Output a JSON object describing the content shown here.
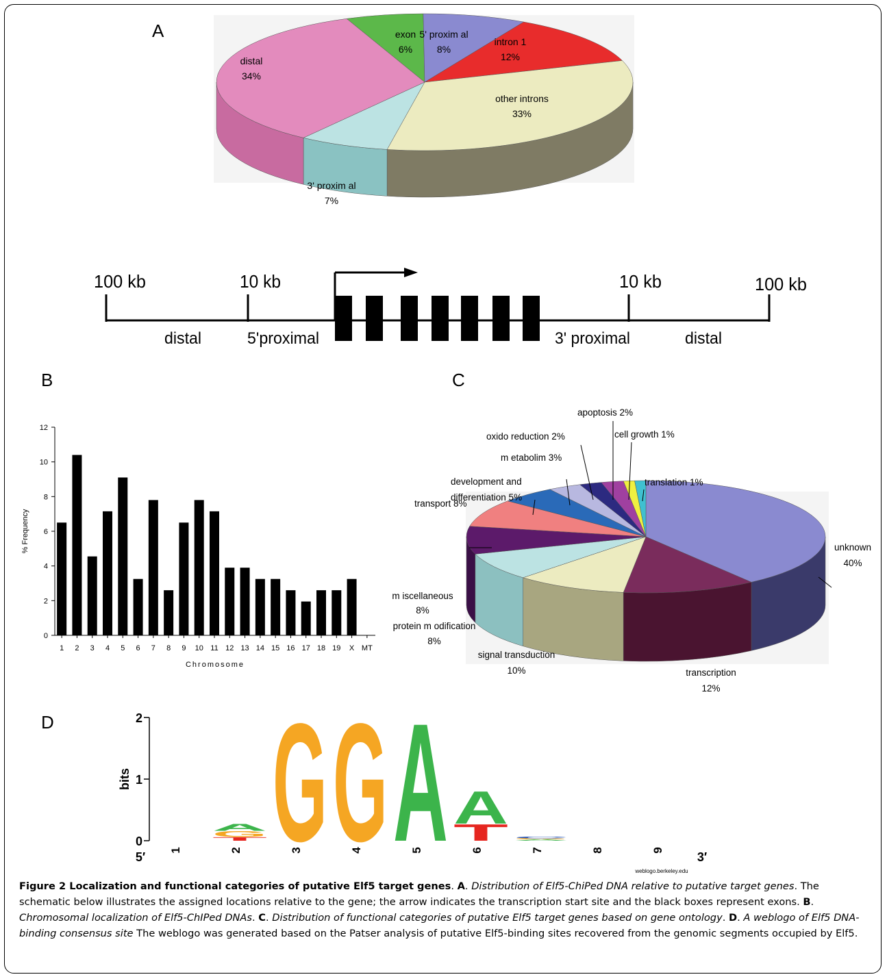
{
  "panels": {
    "a": "A",
    "b": "B",
    "c": "C",
    "d": "D"
  },
  "chart_data": [
    {
      "type": "pie",
      "panel": "A",
      "labels": [
        "exon",
        "5' proxim al",
        "intron 1",
        "other introns",
        "3' proxim al",
        "distal"
      ],
      "values": [
        6,
        8,
        12,
        33,
        7,
        34
      ],
      "value_labels": [
        "6%",
        "8%",
        "12%",
        "33%",
        "7%",
        "34%"
      ],
      "colors": [
        "#5cb84a",
        "#8a8ad0",
        "#e82c2c",
        "#ecebc0",
        "#bce3e3",
        "#e38bbd"
      ],
      "side_colors": [
        "#3f8a32",
        "#5e5ea2",
        "#9e1e1e",
        "#7f7b64",
        "#8ac2c2",
        "#c86ba0"
      ]
    },
    {
      "type": "bar",
      "panel": "B",
      "categories": [
        "1",
        "2",
        "3",
        "4",
        "5",
        "6",
        "7",
        "8",
        "9",
        "10",
        "11",
        "12",
        "13",
        "14",
        "15",
        "16",
        "17",
        "18",
        "19",
        "X",
        "MT"
      ],
      "values": [
        6.5,
        10.4,
        4.55,
        7.15,
        9.1,
        3.25,
        7.8,
        2.6,
        6.5,
        7.8,
        7.15,
        3.9,
        3.9,
        3.25,
        3.25,
        2.6,
        1.95,
        2.6,
        2.6,
        3.25,
        0
      ],
      "xlabel": "Chromosome",
      "ylabel": "% Frequency",
      "ylim": [
        0,
        12
      ],
      "yticks": [
        "0",
        "2",
        "4",
        "6",
        "8",
        "10",
        "12"
      ],
      "bar_color": "#000000"
    },
    {
      "type": "pie",
      "panel": "C",
      "labels": [
        "unknown",
        "transcription",
        "signal transduction",
        "protein modification",
        "miscellaneous",
        "transport",
        "development and differentiation",
        "metabolim",
        "oxido reduction",
        "apoptosis",
        "cell growth",
        "translation"
      ],
      "values": [
        40,
        12,
        10,
        8,
        8,
        8,
        5,
        3,
        2,
        2,
        1,
        1
      ],
      "value_labels": [
        "40%",
        "12%",
        "10%",
        "8%",
        "8%",
        "8%",
        "5%",
        "3%",
        "2%",
        "2%",
        "1%",
        "1%"
      ],
      "label_texts": [
        "unknown",
        "transcription",
        "signal transduction",
        "protein m odification",
        "m iscellaneous",
        "transport 8%",
        "development and",
        "m etabolim 3%",
        "oxido reduction 2%",
        "apoptosis 2%",
        "cell growth 1%",
        "translation 1%"
      ],
      "label_texts_2": [
        "40%",
        "12%",
        "10%",
        "8%",
        "8%",
        "",
        "differentiation 5%",
        "",
        "",
        "",
        "",
        ""
      ],
      "colors": [
        "#8a8ad0",
        "#7a2c5c",
        "#ecebc0",
        "#bce3e3",
        "#5c1a6a",
        "#f08080",
        "#2a6ab8",
        "#b8b8e0",
        "#2c2a80",
        "#a040a0",
        "#f0f040",
        "#40c0d0"
      ],
      "side_colors": [
        "#3a3a6a",
        "#4a1430",
        "#a8a680",
        "#8cc0c0",
        "#3a0f46",
        "#c05a5a",
        "#1a4a88",
        "#8888b0",
        "#1a1858",
        "#702a70",
        "#b0b020",
        "#2a8a96"
      ]
    },
    {
      "type": "sequence-logo",
      "panel": "D",
      "ylabel": "bits",
      "yticks": [
        "0",
        "1",
        "2"
      ],
      "positions": [
        "1",
        "2",
        "3",
        "4",
        "5",
        "6",
        "7",
        "8",
        "9"
      ],
      "end_left": "5′",
      "end_right": "3′",
      "letters": [
        {
          "pos": 2,
          "letter": "A",
          "bits": 0.12,
          "color": "#3cb44b"
        },
        {
          "pos": 2,
          "letter": "T",
          "bits": 0.06,
          "color": "#e6261f"
        },
        {
          "pos": 2,
          "letter": "G",
          "bits": 0.1,
          "color": "#f5a623"
        },
        {
          "pos": 3,
          "letter": "G",
          "bits": 2.0,
          "color": "#f5a623"
        },
        {
          "pos": 4,
          "letter": "G",
          "bits": 2.0,
          "color": "#f5a623"
        },
        {
          "pos": 5,
          "letter": "A",
          "bits": 2.0,
          "color": "#3cb44b"
        },
        {
          "pos": 6,
          "letter": "A",
          "bits": 0.55,
          "color": "#3cb44b"
        },
        {
          "pos": 6,
          "letter": "T",
          "bits": 0.28,
          "color": "#e6261f"
        },
        {
          "pos": 7,
          "letter": "C",
          "bits": 0.03,
          "color": "#1f4fb4"
        },
        {
          "pos": 7,
          "letter": "A",
          "bits": 0.02,
          "color": "#3cb44b"
        },
        {
          "pos": 7,
          "letter": "G",
          "bits": 0.02,
          "color": "#f5a623"
        }
      ],
      "credit": "weblogo.berkeley.edu"
    }
  ],
  "schematic": {
    "left_outer": "100 kb",
    "left_inner": "10 kb",
    "right_inner": "10 kb",
    "right_outer": "100 kb",
    "left_distal": "distal",
    "left_proximal": "5'proximal",
    "right_proximal": "3' proximal",
    "right_distal": "distal",
    "exon_count": 7
  },
  "caption": {
    "figure_label": "Figure 2 Localization and functional categories of putative Elf5 target genes",
    "a_letter": "A",
    "a_italic": "Distribution of Elf5-ChiPed DNA relative to putative target genes",
    "a_text": "The schematic below illustrates the assigned locations relative to the gene; the arrow indicates the transcription start site and the black boxes represent exons.",
    "b_letter": "B",
    "b_italic": "Chromosomal localization of Elf5-ChIPed DNAs",
    "c_letter": "C",
    "c_italic": "Distribution of functional categories of putative Elf5 target genes based on gene ontology",
    "d_letter": "D",
    "d_italic": "A weblogo of Elf5 DNA-binding consensus site",
    "d_text": "The weblogo was generated based on the Patser analysis of putative Elf5-binding sites recovered from the genomic segments occupied by Elf5."
  }
}
